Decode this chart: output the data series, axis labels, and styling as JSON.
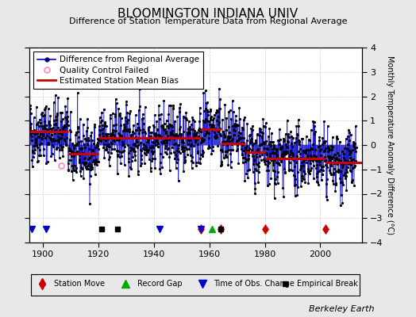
{
  "title": "BLOOMINGTON INDIANA UNIV",
  "subtitle": "Difference of Station Temperature Data from Regional Average",
  "ylabel": "Monthly Temperature Anomaly Difference (°C)",
  "xlabel_years": [
    1900,
    1920,
    1940,
    1960,
    1980,
    2000
  ],
  "xlim": [
    1895,
    2015
  ],
  "ylim": [
    -4,
    4
  ],
  "background_color": "#e8e8e8",
  "plot_bg_color": "#ffffff",
  "grid_color": "#cccccc",
  "data_line_color": "#0000cc",
  "data_marker_color": "#000000",
  "bias_line_color": "#cc0000",
  "qc_fail_color": "#ff88bb",
  "station_move_color": "#cc0000",
  "record_gap_color": "#00aa00",
  "time_obs_color": "#0000cc",
  "empirical_break_color": "#000000",
  "random_seed": 42,
  "station_moves": [
    1957,
    1964,
    1980,
    2002
  ],
  "record_gaps": [
    1961
  ],
  "time_obs_changes": [
    1896,
    1901,
    1942,
    1957
  ],
  "empirical_breaks": [
    1921,
    1927,
    1964
  ],
  "bias_segments": [
    {
      "start": 1895,
      "end": 1909,
      "value": 0.55
    },
    {
      "start": 1909,
      "end": 1920,
      "value": -0.35
    },
    {
      "start": 1920,
      "end": 1957,
      "value": 0.3
    },
    {
      "start": 1957,
      "end": 1964,
      "value": 0.65
    },
    {
      "start": 1964,
      "end": 1973,
      "value": 0.05
    },
    {
      "start": 1973,
      "end": 1980,
      "value": -0.3
    },
    {
      "start": 1980,
      "end": 2002,
      "value": -0.55
    },
    {
      "start": 2002,
      "end": 2015,
      "value": -0.7
    }
  ],
  "qc_fail_point": {
    "year": 1906.5,
    "value": -0.85
  },
  "berkeley_earth_text": "Berkeley Earth",
  "title_fontsize": 11,
  "subtitle_fontsize": 8,
  "tick_fontsize": 8,
  "legend_fontsize": 7.5,
  "footer_fontsize": 8,
  "marker_y": -3.45
}
